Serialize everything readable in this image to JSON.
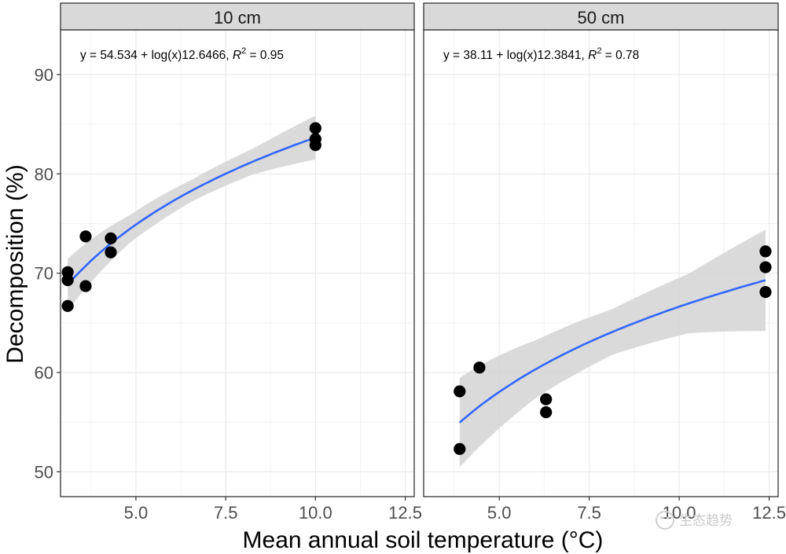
{
  "chart_data": {
    "type": "scatter",
    "xlabel": "Mean annual soil temperature (°C)",
    "ylabel": "Decomposition (%)",
    "xlim": [
      2.9,
      12.75
    ],
    "ylim": [
      47.5,
      94.5
    ],
    "x_ticks": [
      5.0,
      7.5,
      10.0,
      12.5
    ],
    "x_tick_labels": [
      "5.0",
      "7.5",
      "10.0",
      "12.5"
    ],
    "y_ticks": [
      50,
      60,
      70,
      80,
      90
    ],
    "y_tick_labels": [
      "50",
      "60",
      "70",
      "80",
      "90"
    ],
    "grid": true,
    "point_color": "#000000",
    "curve_color": "#3366ff",
    "band_color": "#d3d3d3",
    "panels": [
      {
        "strip": "10 cm",
        "equation": {
          "prefix": "y = 54.534 + log(x)12.6466,",
          "r2_label": "R",
          "r2_sup": "2",
          "r2_value": " = 0.95"
        },
        "fit": {
          "intercept": 54.534,
          "slope": 12.6466,
          "x_range": [
            3.1,
            10.0
          ]
        },
        "band_halfwidth": [
          2.6,
          1.4,
          1.1,
          1.3,
          2.2
        ],
        "points": [
          {
            "x": 3.1,
            "y": 70.1
          },
          {
            "x": 3.1,
            "y": 69.3
          },
          {
            "x": 3.1,
            "y": 66.7
          },
          {
            "x": 3.6,
            "y": 73.7
          },
          {
            "x": 3.6,
            "y": 68.7
          },
          {
            "x": 4.3,
            "y": 73.5
          },
          {
            "x": 4.3,
            "y": 72.1
          },
          {
            "x": 10.0,
            "y": 84.6
          },
          {
            "x": 10.0,
            "y": 83.5
          },
          {
            "x": 10.0,
            "y": 82.9
          }
        ]
      },
      {
        "strip": "50 cm",
        "equation": {
          "prefix": "y = 38.11 + log(x)12.3841,",
          "r2_label": "R",
          "r2_sup": "2",
          "r2_value": " = 0.78"
        },
        "fit": {
          "intercept": 38.11,
          "slope": 12.3841,
          "x_range": [
            3.9,
            12.4
          ]
        },
        "band_halfwidth": [
          4.5,
          2.9,
          2.3,
          3.0,
          5.1
        ],
        "points": [
          {
            "x": 3.9,
            "y": 58.1
          },
          {
            "x": 3.9,
            "y": 52.3
          },
          {
            "x": 4.45,
            "y": 60.5
          },
          {
            "x": 6.3,
            "y": 57.3
          },
          {
            "x": 6.3,
            "y": 56.0
          },
          {
            "x": 12.4,
            "y": 72.2
          },
          {
            "x": 12.4,
            "y": 70.6
          },
          {
            "x": 12.4,
            "y": 68.1
          }
        ]
      }
    ]
  },
  "watermark": {
    "text": "生态趋势"
  }
}
